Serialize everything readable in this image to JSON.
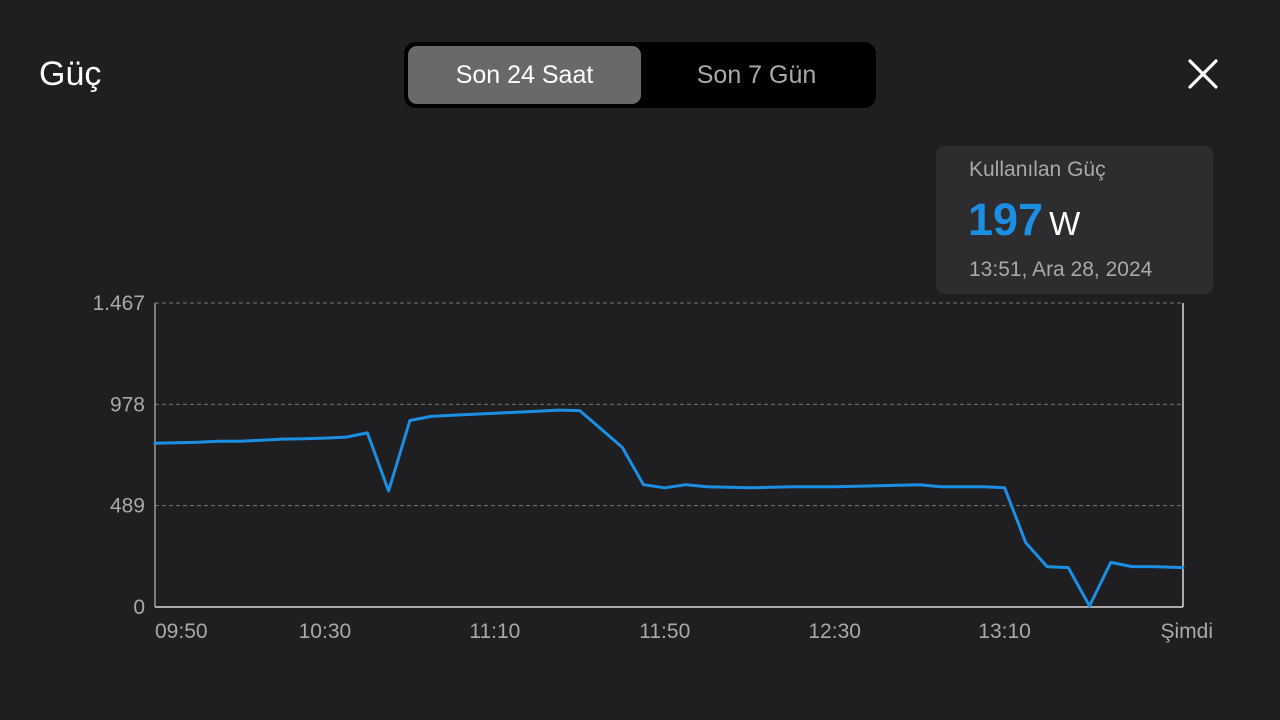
{
  "header": {
    "title": "Güç",
    "tabs": [
      {
        "label": "Son 24 Saat",
        "selected": true
      },
      {
        "label": "Son 7 Gün",
        "selected": false
      }
    ],
    "close_icon": "close-icon"
  },
  "tooltip": {
    "label": "Kullanılan Güç",
    "value": "197",
    "unit": "W",
    "timestamp": "13:51, Ara 28, 2024",
    "value_color": "#1a8fe3"
  },
  "colors": {
    "accent": "#1a8fe3",
    "background": "#1f1f21",
    "grid": "#8a8a8d",
    "axis_text": "#a9a9ac"
  },
  "chart_data": {
    "type": "line",
    "title": "",
    "xlabel": "",
    "ylabel": "",
    "y_ticks": [
      {
        "value": 0,
        "label": "0"
      },
      {
        "value": 489,
        "label": "489"
      },
      {
        "value": 978,
        "label": "978"
      },
      {
        "value": 1467,
        "label": "1.467"
      }
    ],
    "ylim": [
      0,
      1467
    ],
    "x_ticks": [
      "09:50",
      "10:30",
      "11:10",
      "11:50",
      "12:30",
      "13:10",
      "Şimdi"
    ],
    "x_tick_minutes": [
      590,
      630,
      670,
      710,
      750,
      790,
      832
    ],
    "xlim_minutes": [
      590,
      832
    ],
    "grid": true,
    "series": [
      {
        "values": [
          [
            590,
            790
          ],
          [
            600,
            795
          ],
          [
            605,
            800
          ],
          [
            610,
            800
          ],
          [
            615,
            805
          ],
          [
            620,
            810
          ],
          [
            625,
            812
          ],
          [
            630,
            815
          ],
          [
            635,
            820
          ],
          [
            640,
            840
          ],
          [
            645,
            560
          ],
          [
            650,
            900
          ],
          [
            655,
            920
          ],
          [
            660,
            925
          ],
          [
            665,
            930
          ],
          [
            670,
            935
          ],
          [
            675,
            940
          ],
          [
            680,
            945
          ],
          [
            685,
            950
          ],
          [
            690,
            948
          ],
          [
            700,
            770
          ],
          [
            705,
            590
          ],
          [
            710,
            575
          ],
          [
            715,
            590
          ],
          [
            720,
            580
          ],
          [
            730,
            575
          ],
          [
            740,
            580
          ],
          [
            750,
            580
          ],
          [
            760,
            585
          ],
          [
            770,
            590
          ],
          [
            775,
            580
          ],
          [
            785,
            580
          ],
          [
            790,
            575
          ],
          [
            795,
            310
          ],
          [
            800,
            195
          ],
          [
            805,
            190
          ],
          [
            810,
            5
          ],
          [
            815,
            215
          ],
          [
            820,
            195
          ],
          [
            825,
            195
          ],
          [
            832,
            190
          ]
        ]
      }
    ]
  }
}
